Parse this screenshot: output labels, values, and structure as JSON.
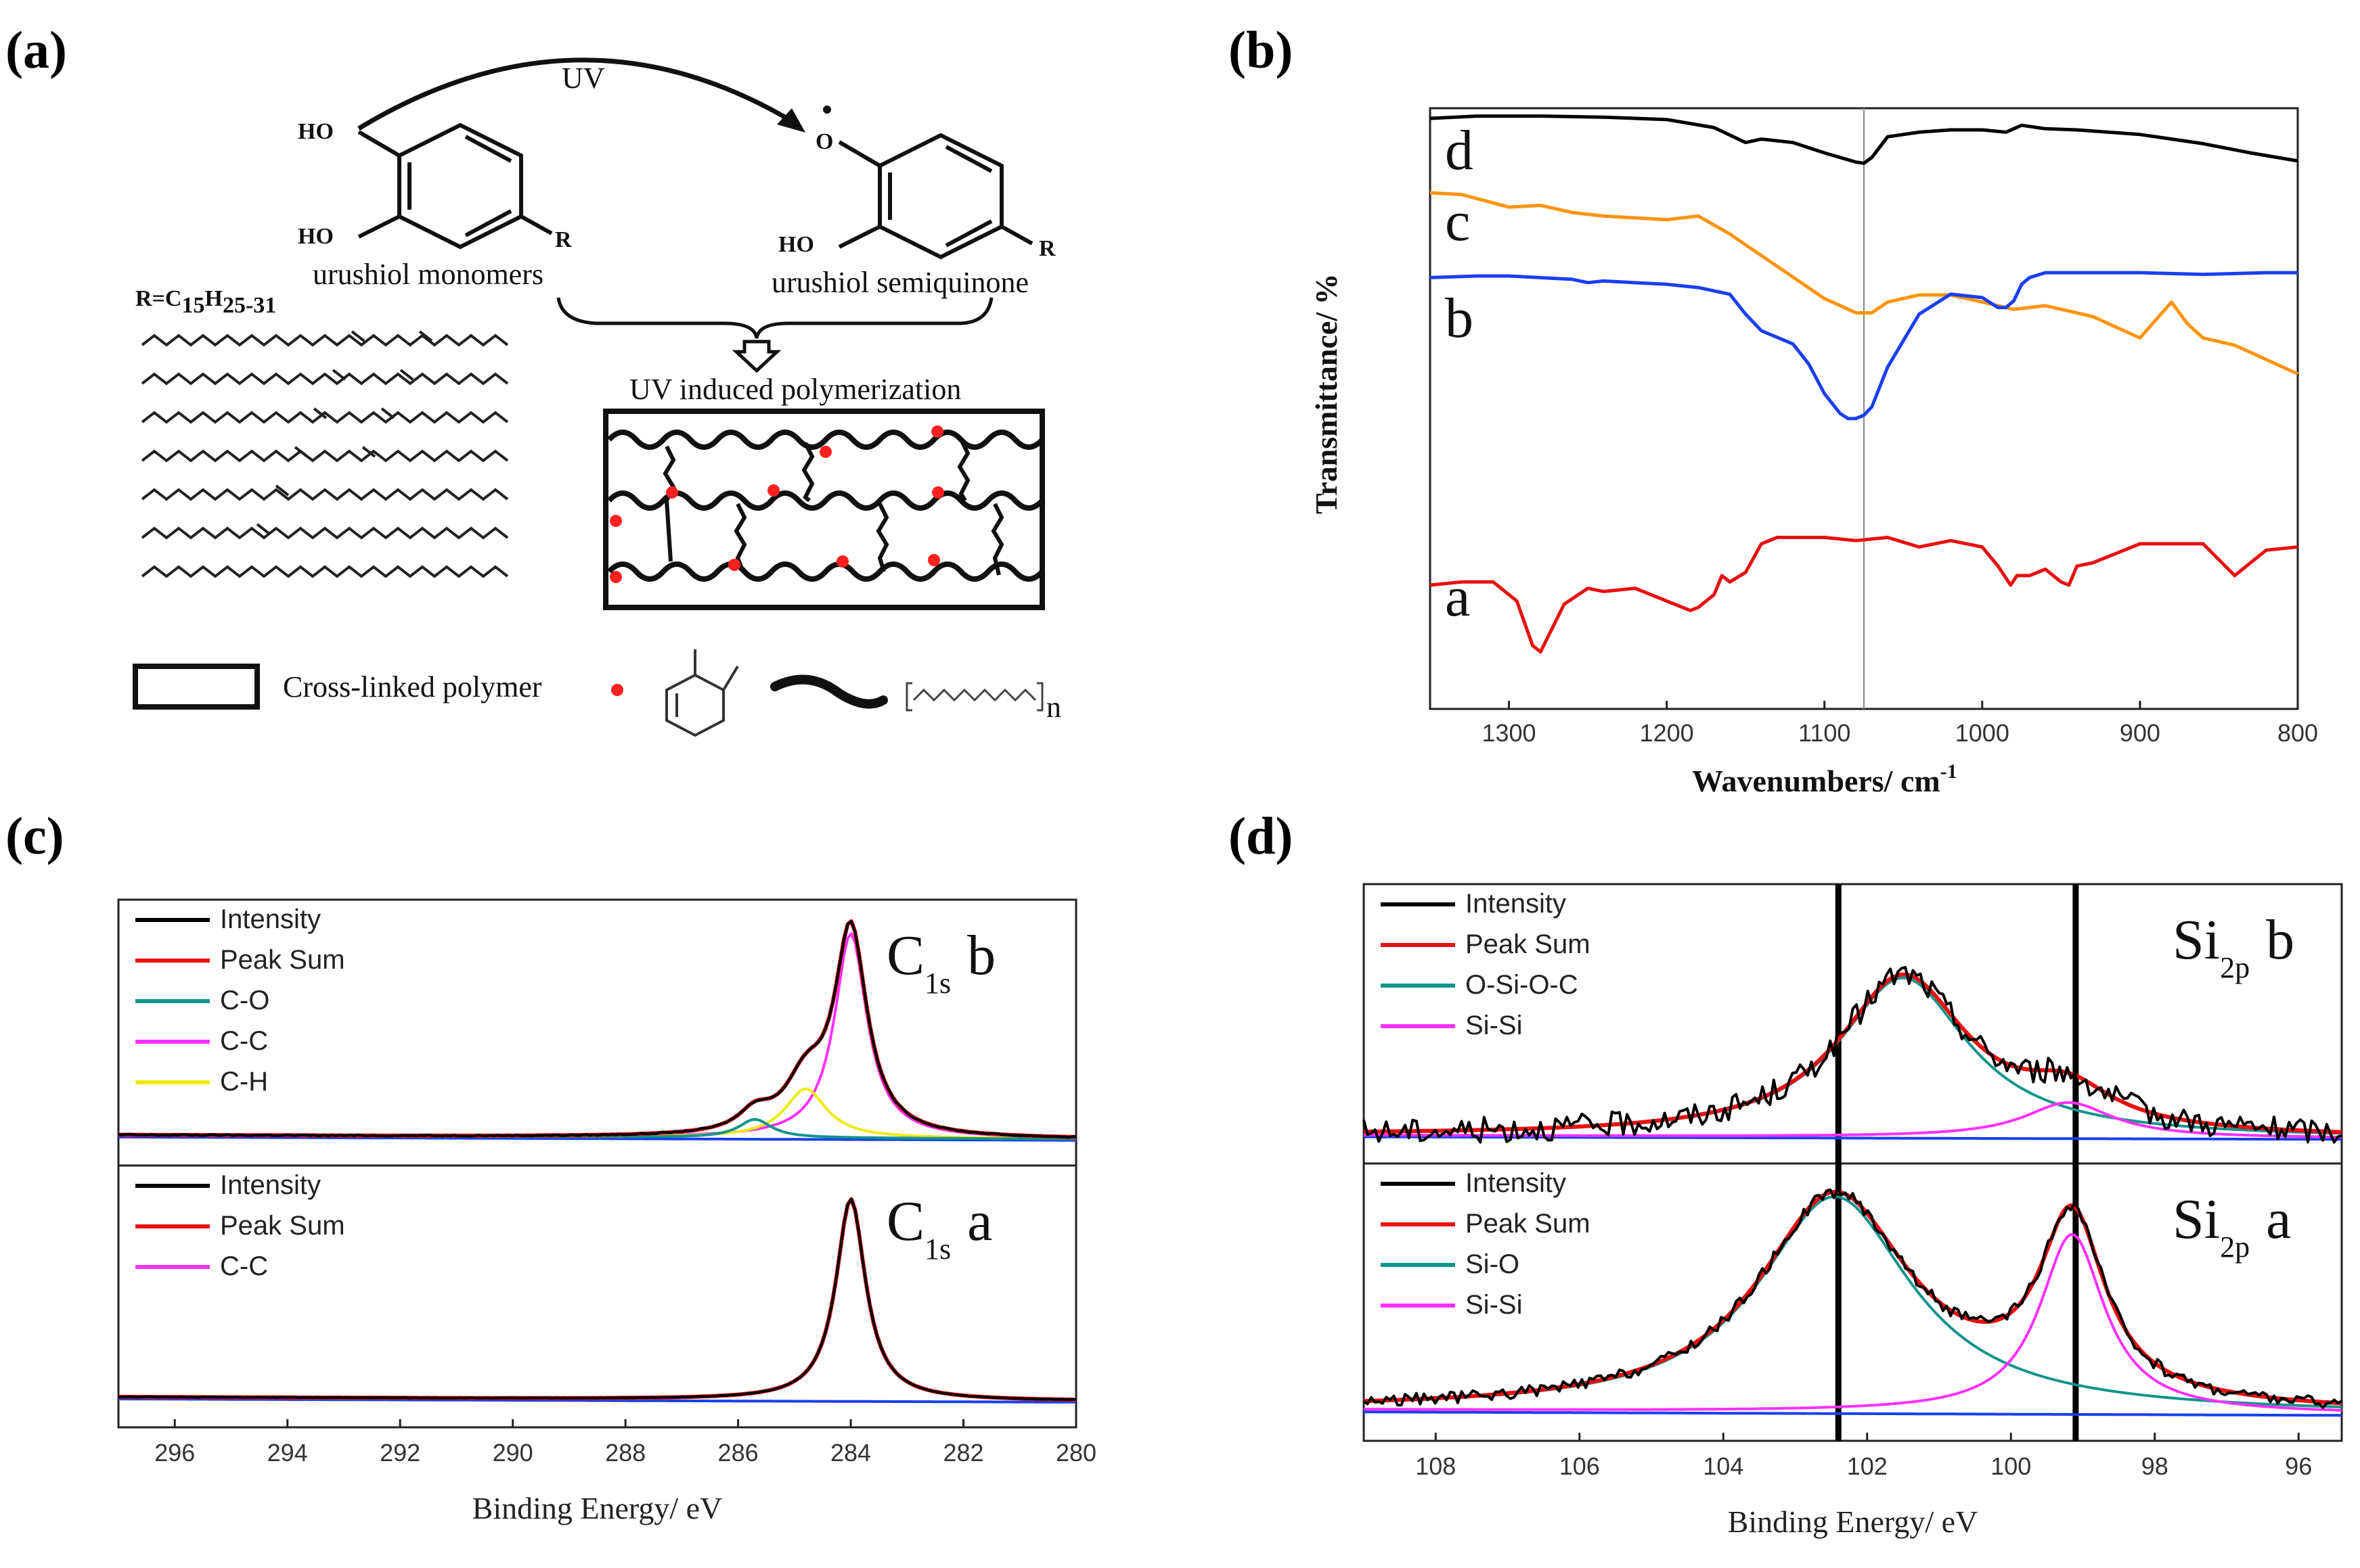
{
  "panels": {
    "a": {
      "label": "(a)",
      "uv": "UV",
      "ho_top": "HO",
      "ho_bottom": "HO",
      "r_left": "R",
      "o_radical": "O",
      "ho_right": "HO",
      "r_right": "R",
      "monomers": "urushiol monomers",
      "semiquinone": "urushiol semiquinone",
      "r_formula_prefix": "R=C",
      "r_sub1": "15",
      "r_mid": "H",
      "r_sub2": "25-31",
      "polymerization": "UV induced polymerization",
      "legend_text": "Cross-linked polymer",
      "repeat_n": "n"
    },
    "b": {
      "label": "(b)"
    },
    "c": {
      "label": "(c)"
    },
    "d": {
      "label": "(d)"
    }
  },
  "chart_data": [
    {
      "id": "b",
      "type": "line",
      "xlabel": "Wavenumbers/ cm",
      "xlabel_sup": "-1",
      "ylabel": "Transmittance/ %",
      "xlim": [
        1350,
        800
      ],
      "ylim": [
        0,
        100
      ],
      "xticks": [
        "1300",
        "1200",
        "1100",
        "1000",
        "900",
        "800"
      ],
      "vline": 1075,
      "series": [
        {
          "name": "d",
          "color": "#000000",
          "x": [
            1350,
            1320,
            1280,
            1240,
            1200,
            1170,
            1150,
            1140,
            1120,
            1100,
            1090,
            1080,
            1075,
            1070,
            1060,
            1040,
            1020,
            1000,
            985,
            975,
            960,
            940,
            900,
            860,
            830,
            800
          ],
          "y": [
            95,
            96,
            96,
            95.5,
            94.5,
            91,
            84.5,
            86,
            84.5,
            80,
            78,
            76,
            75.5,
            78,
            87,
            89,
            90,
            90,
            89,
            92,
            90.5,
            90,
            88,
            84,
            80,
            76.5
          ]
        },
        {
          "name": "c",
          "color": "#ff9410",
          "x": [
            1350,
            1330,
            1300,
            1280,
            1260,
            1240,
            1200,
            1180,
            1160,
            1140,
            1120,
            1100,
            1090,
            1080,
            1070,
            1060,
            1040,
            1020,
            1000,
            980,
            960,
            930,
            900,
            880,
            870,
            860,
            840,
            820,
            800
          ],
          "y": [
            86.5,
            86,
            82.5,
            83,
            81,
            80,
            79,
            80,
            75,
            69,
            63,
            57,
            55,
            53,
            53,
            56,
            58,
            58,
            56,
            54,
            55,
            52,
            46,
            56,
            50,
            46,
            44,
            40,
            36
          ]
        },
        {
          "name": "b",
          "color": "#1a3ff0",
          "x": [
            1350,
            1320,
            1300,
            1260,
            1250,
            1240,
            1200,
            1180,
            1160,
            1150,
            1140,
            1120,
            1110,
            1100,
            1090,
            1085,
            1080,
            1075,
            1070,
            1060,
            1040,
            1020,
            1000,
            990,
            985,
            980,
            975,
            970,
            960,
            900,
            860,
            820,
            800
          ],
          "y": [
            75,
            75.5,
            75.5,
            74.5,
            73.5,
            74,
            73,
            72,
            70,
            64,
            59,
            55,
            49,
            40,
            34,
            32.5,
            32.5,
            33.5,
            36,
            48,
            64,
            70,
            69,
            66,
            66,
            68,
            73,
            75,
            76.5,
            76.5,
            76,
            76.5,
            76.5
          ]
        },
        {
          "name": "a",
          "color": "#e81010",
          "x": [
            1350,
            1330,
            1310,
            1295,
            1285,
            1280,
            1275,
            1265,
            1250,
            1240,
            1220,
            1200,
            1185,
            1180,
            1170,
            1165,
            1160,
            1150,
            1140,
            1130,
            1100,
            1080,
            1060,
            1040,
            1020,
            1000,
            990,
            982,
            978,
            970,
            960,
            950,
            945,
            940,
            930,
            900,
            860,
            840,
            830,
            820,
            800
          ],
          "y": [
            19,
            20,
            20,
            14,
            0,
            -2,
            3,
            13,
            18,
            17,
            18,
            14,
            11,
            12,
            16,
            22,
            20,
            23,
            32,
            34,
            34,
            33,
            34,
            31,
            33,
            31,
            25,
            19,
            22,
            22,
            24,
            20,
            19,
            25,
            26,
            32,
            32,
            22,
            26,
            30,
            31
          ]
        }
      ]
    },
    {
      "id": "c",
      "type": "line",
      "xlabel": "Binding Energy/ eV",
      "xlim": [
        297,
        280
      ],
      "xticks": [
        "296",
        "294",
        "292",
        "290",
        "288",
        "286",
        "284",
        "282",
        "280"
      ],
      "subplots": [
        {
          "name": "b",
          "tag_main": "C",
          "tag_sub": "1s",
          "tag_letter": "b",
          "legend": [
            "Intensity",
            "Peak Sum",
            "C-O",
            "C-C",
            "C-H"
          ],
          "legend_colors": [
            "#000000",
            "#e81010",
            "#11948d",
            "#ff30ff",
            "#f0ea10"
          ],
          "peaks": [
            {
              "name": "C-C",
              "center": 284.0,
              "height": 100,
              "width": 0.35
            },
            {
              "name": "C-H",
              "center": 284.8,
              "height": 24,
              "width": 0.45
            },
            {
              "name": "C-O",
              "center": 285.7,
              "height": 9,
              "width": 0.35
            }
          ],
          "baseline_ylim": [
            0,
            110
          ]
        },
        {
          "name": "a",
          "tag_main": "C",
          "tag_sub": "1s",
          "tag_letter": "a",
          "legend": [
            "Intensity",
            "Peak Sum",
            "C-C"
          ],
          "legend_colors": [
            "#000000",
            "#e81010",
            "#ff30ff"
          ],
          "peaks": [
            {
              "name": "C-C",
              "center": 284.0,
              "height": 100,
              "width": 0.32
            }
          ],
          "baseline_ylim": [
            0,
            110
          ]
        }
      ]
    },
    {
      "id": "d",
      "type": "line",
      "xlabel": "Binding Energy/ eV",
      "xlim": [
        109,
        95.4
      ],
      "xticks": [
        "108",
        "106",
        "104",
        "102",
        "100",
        "98",
        "96"
      ],
      "vlines": [
        102.4,
        99.1
      ],
      "subplots": [
        {
          "name": "b",
          "tag_main": "Si",
          "tag_sub": "2p",
          "tag_letter": "b",
          "legend": [
            "Intensity",
            "Peak Sum",
            "O-Si-O-C",
            "Si-Si"
          ],
          "legend_colors": [
            "#000000",
            "#e81010",
            "#11948d",
            "#ff30ff"
          ],
          "peaks": [
            {
              "name": "O-Si-O-C",
              "center": 101.5,
              "height": 100,
              "width": 1.1
            },
            {
              "name": "Si-Si",
              "center": 99.2,
              "height": 22,
              "width": 0.75
            }
          ],
          "baseline_ylim": [
            0,
            150
          ]
        },
        {
          "name": "a",
          "tag_main": "Si",
          "tag_sub": "2p",
          "tag_letter": "a",
          "legend": [
            "Intensity",
            "Peak Sum",
            "Si-O",
            "Si-Si"
          ],
          "legend_colors": [
            "#000000",
            "#e81010",
            "#11948d",
            "#ff30ff"
          ],
          "peaks": [
            {
              "name": "Si-O",
              "center": 102.45,
              "height": 100,
              "width": 1.3
            },
            {
              "name": "Si-Si",
              "center": 99.15,
              "height": 83,
              "width": 0.55
            }
          ],
          "baseline_ylim": [
            0,
            110
          ]
        }
      ]
    }
  ]
}
